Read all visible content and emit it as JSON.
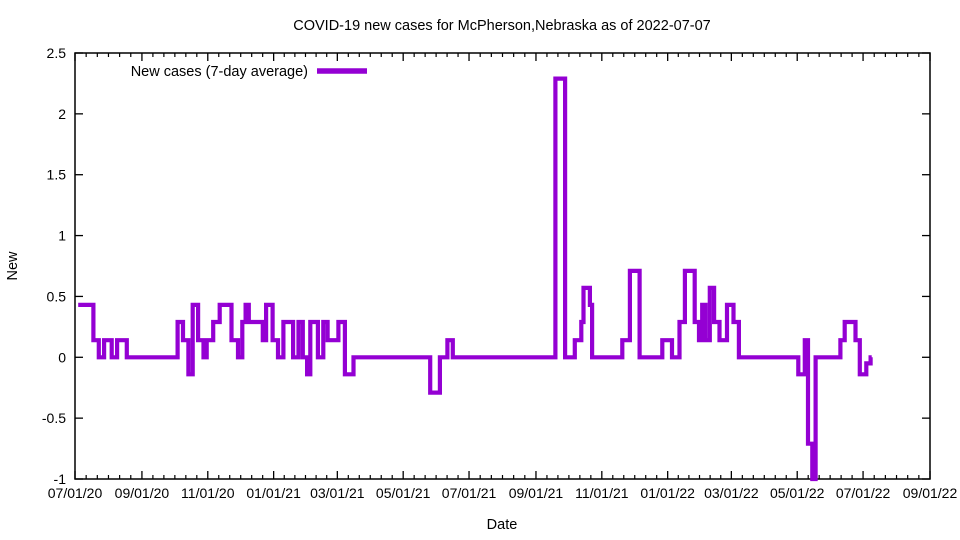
{
  "figure": {
    "background": "#ffffff",
    "axis_color": "#000000",
    "text_color": "#000000"
  },
  "chart_data": {
    "type": "line",
    "draw_style": "steps-post",
    "title": "COVID-19 new cases for McPherson,Nebraska as of 2022-07-07",
    "xlabel": "Date",
    "ylabel": "New",
    "legend": {
      "label": "New cases (7-day average)",
      "position": "top-left-inside"
    },
    "line_color": "#9400D3",
    "grid": false,
    "ylim": [
      -1,
      2.5
    ],
    "y_ticks": [
      {
        "value": -1,
        "label": "-1"
      },
      {
        "value": -0.5,
        "label": "-0.5"
      },
      {
        "value": 0,
        "label": "0"
      },
      {
        "value": 0.5,
        "label": "0.5"
      },
      {
        "value": 1,
        "label": "1"
      },
      {
        "value": 1.5,
        "label": "1.5"
      },
      {
        "value": 2,
        "label": "2"
      },
      {
        "value": 2.5,
        "label": "2.5"
      }
    ],
    "x_range": [
      "2020-07-01",
      "2022-09-01"
    ],
    "x_ticks": [
      {
        "date": "2020-07-01",
        "label": "07/01/20"
      },
      {
        "date": "2020-09-01",
        "label": "09/01/20"
      },
      {
        "date": "2020-11-01",
        "label": "11/01/20"
      },
      {
        "date": "2021-01-01",
        "label": "01/01/21"
      },
      {
        "date": "2021-03-01",
        "label": "03/01/21"
      },
      {
        "date": "2021-05-01",
        "label": "05/01/21"
      },
      {
        "date": "2021-07-01",
        "label": "07/01/21"
      },
      {
        "date": "2021-09-01",
        "label": "09/01/21"
      },
      {
        "date": "2021-11-01",
        "label": "11/01/21"
      },
      {
        "date": "2022-01-01",
        "label": "01/01/22"
      },
      {
        "date": "2022-03-01",
        "label": "03/01/22"
      },
      {
        "date": "2022-05-01",
        "label": "05/01/22"
      },
      {
        "date": "2022-07-01",
        "label": "07/01/22"
      },
      {
        "date": "2022-09-01",
        "label": "09/01/22"
      }
    ],
    "x_minor_divisions": 6,
    "series": [
      {
        "name": "New cases (7-day average)",
        "end_date": "2022-07-09",
        "steps": [
          [
            "2020-07-04",
            0.43
          ],
          [
            "2020-07-18",
            0.14
          ],
          [
            "2020-07-23",
            0.0
          ],
          [
            "2020-07-28",
            0.14
          ],
          [
            "2020-08-04",
            0.0
          ],
          [
            "2020-08-09",
            0.14
          ],
          [
            "2020-08-18",
            0.0
          ],
          [
            "2020-10-04",
            0.29
          ],
          [
            "2020-10-09",
            0.14
          ],
          [
            "2020-10-14",
            -0.14
          ],
          [
            "2020-10-18",
            0.43
          ],
          [
            "2020-10-23",
            0.14
          ],
          [
            "2020-10-28",
            0.0
          ],
          [
            "2020-10-31",
            0.14
          ],
          [
            "2020-11-06",
            0.29
          ],
          [
            "2020-11-12",
            0.43
          ],
          [
            "2020-11-23",
            0.14
          ],
          [
            "2020-11-29",
            0.0
          ],
          [
            "2020-12-03",
            0.29
          ],
          [
            "2020-12-06",
            0.43
          ],
          [
            "2020-12-09",
            0.29
          ],
          [
            "2020-12-22",
            0.14
          ],
          [
            "2020-12-25",
            0.43
          ],
          [
            "2020-12-31",
            0.14
          ],
          [
            "2021-01-05",
            0.0
          ],
          [
            "2021-01-10",
            0.29
          ],
          [
            "2021-01-19",
            0.0
          ],
          [
            "2021-01-24",
            0.29
          ],
          [
            "2021-01-28",
            0.0
          ],
          [
            "2021-02-01",
            -0.14
          ],
          [
            "2021-02-04",
            0.29
          ],
          [
            "2021-02-11",
            0.0
          ],
          [
            "2021-02-16",
            0.29
          ],
          [
            "2021-02-20",
            0.14
          ],
          [
            "2021-03-02",
            0.29
          ],
          [
            "2021-03-08",
            -0.14
          ],
          [
            "2021-03-16",
            0.0
          ],
          [
            "2021-05-26",
            -0.29
          ],
          [
            "2021-06-04",
            0.0
          ],
          [
            "2021-06-11",
            0.14
          ],
          [
            "2021-06-16",
            0.0
          ],
          [
            "2021-09-19",
            2.29
          ],
          [
            "2021-09-28",
            0.0
          ],
          [
            "2021-10-07",
            0.14
          ],
          [
            "2021-10-13",
            0.29
          ],
          [
            "2021-10-15",
            0.57
          ],
          [
            "2021-10-21",
            0.43
          ],
          [
            "2021-10-23",
            0.0
          ],
          [
            "2021-11-20",
            0.14
          ],
          [
            "2021-11-27",
            0.71
          ],
          [
            "2021-12-06",
            0.0
          ],
          [
            "2021-12-27",
            0.14
          ],
          [
            "2022-01-05",
            0.0
          ],
          [
            "2022-01-12",
            0.29
          ],
          [
            "2022-01-17",
            0.71
          ],
          [
            "2022-01-26",
            0.29
          ],
          [
            "2022-01-30",
            0.14
          ],
          [
            "2022-02-02",
            0.43
          ],
          [
            "2022-02-05",
            0.14
          ],
          [
            "2022-02-09",
            0.57
          ],
          [
            "2022-02-13",
            0.29
          ],
          [
            "2022-02-18",
            0.14
          ],
          [
            "2022-02-25",
            0.43
          ],
          [
            "2022-03-03",
            0.29
          ],
          [
            "2022-03-08",
            0.0
          ],
          [
            "2022-05-02",
            -0.14
          ],
          [
            "2022-05-08",
            0.14
          ],
          [
            "2022-05-11",
            -0.71
          ],
          [
            "2022-05-15",
            -1.0
          ],
          [
            "2022-05-18",
            0.0
          ],
          [
            "2022-06-10",
            0.14
          ],
          [
            "2022-06-14",
            0.29
          ],
          [
            "2022-06-24",
            0.14
          ],
          [
            "2022-06-28",
            -0.14
          ],
          [
            "2022-07-04",
            -0.05
          ],
          [
            "2022-07-08",
            0.0
          ]
        ]
      }
    ]
  }
}
